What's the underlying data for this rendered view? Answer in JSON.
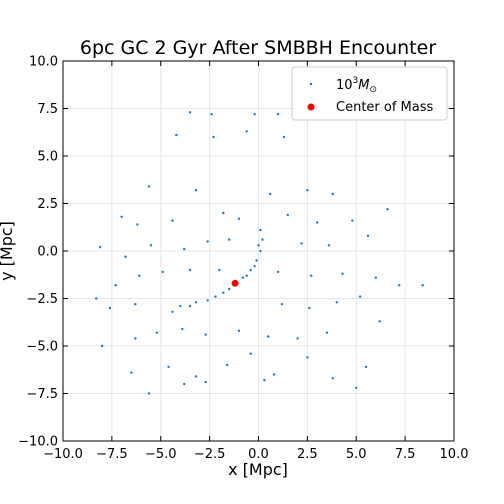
{
  "chart_data": {
    "type": "scatter",
    "title": "6pc GC 2 Gyr After SMBBH Encounter",
    "xlabel": "x [Mpc]",
    "ylabel": "y [Mpc]",
    "xlim": [
      -10,
      10
    ],
    "ylim": [
      -10,
      10
    ],
    "xticks": [
      -10,
      -7.5,
      -5,
      -2.5,
      0,
      2.5,
      5,
      7.5,
      10
    ],
    "yticks": [
      -10,
      -7.5,
      -5,
      -2.5,
      0,
      2.5,
      5,
      7.5,
      10
    ],
    "xtick_labels": [
      "−10.0",
      "−7.5",
      "−5.0",
      "−2.5",
      "0.0",
      "2.5",
      "5.0",
      "7.5",
      "10.0"
    ],
    "ytick_labels": [
      "−10.0",
      "−7.5",
      "−5.0",
      "−2.5",
      "0.0",
      "2.5",
      "5.0",
      "7.5",
      "10.0"
    ],
    "grid": true,
    "legend_position": "top-right",
    "series": [
      {
        "name": "10³M☉",
        "legend_base": "10",
        "legend_sup": "3",
        "legend_main": "M",
        "legend_sub": "⊙",
        "color": "#1f77b4",
        "marker": "dot",
        "points": [
          [
            -3.5,
            7.3
          ],
          [
            -2.4,
            7.2
          ],
          [
            -0.2,
            7.2
          ],
          [
            1.0,
            7.2
          ],
          [
            -4.2,
            6.1
          ],
          [
            -2.3,
            6.0
          ],
          [
            -0.6,
            6.3
          ],
          [
            1.3,
            6.0
          ],
          [
            -5.6,
            3.4
          ],
          [
            -3.2,
            3.2
          ],
          [
            0.6,
            3.0
          ],
          [
            2.5,
            3.2
          ],
          [
            3.8,
            3.0
          ],
          [
            -7.0,
            1.8
          ],
          [
            -6.2,
            1.4
          ],
          [
            -4.4,
            1.6
          ],
          [
            -1.8,
            2.0
          ],
          [
            -1.0,
            1.7
          ],
          [
            1.5,
            1.9
          ],
          [
            3.0,
            1.5
          ],
          [
            4.8,
            1.6
          ],
          [
            6.6,
            2.2
          ],
          [
            -8.1,
            0.2
          ],
          [
            -6.8,
            -0.3
          ],
          [
            -5.5,
            0.3
          ],
          [
            -3.8,
            0.1
          ],
          [
            -2.6,
            0.5
          ],
          [
            -1.5,
            0.6
          ],
          [
            2.2,
            0.4
          ],
          [
            3.6,
            0.3
          ],
          [
            5.6,
            0.8
          ],
          [
            -7.3,
            -1.8
          ],
          [
            -6.1,
            -1.3
          ],
          [
            -4.9,
            -1.1
          ],
          [
            -3.5,
            -1.0
          ],
          [
            -2.0,
            -1.0
          ],
          [
            1.0,
            -1.1
          ],
          [
            2.7,
            -1.3
          ],
          [
            4.3,
            -1.2
          ],
          [
            6.0,
            -1.4
          ],
          [
            -7.6,
            -3.0
          ],
          [
            -6.3,
            -2.8
          ],
          [
            -4.4,
            -3.2
          ],
          [
            -3.5,
            -2.9
          ],
          [
            -2.6,
            -2.6
          ],
          [
            -1.8,
            -2.2
          ],
          [
            -1.2,
            -1.8
          ],
          [
            -0.8,
            -1.4
          ],
          [
            -0.4,
            -1.0
          ],
          [
            -0.1,
            -0.5
          ],
          [
            0.1,
            0.0
          ],
          [
            0.2,
            0.6
          ],
          [
            0.1,
            1.1
          ],
          [
            -4.0,
            -2.9
          ],
          [
            -3.2,
            -2.7
          ],
          [
            -2.2,
            -2.4
          ],
          [
            -1.5,
            -2.0
          ],
          [
            -0.6,
            -1.3
          ],
          [
            -0.2,
            -0.8
          ],
          [
            0.0,
            0.3
          ],
          [
            1.2,
            -2.8
          ],
          [
            2.6,
            -3.0
          ],
          [
            4.0,
            -2.7
          ],
          [
            5.2,
            -2.4
          ],
          [
            6.2,
            -3.7
          ],
          [
            -8.0,
            -5.0
          ],
          [
            -6.3,
            -4.6
          ],
          [
            -5.2,
            -4.3
          ],
          [
            -3.9,
            -4.1
          ],
          [
            -2.7,
            -4.4
          ],
          [
            -1.0,
            -4.2
          ],
          [
            0.5,
            -4.5
          ],
          [
            2.0,
            -4.6
          ],
          [
            3.5,
            -4.3
          ],
          [
            -6.5,
            -6.4
          ],
          [
            -4.6,
            -6.1
          ],
          [
            -3.2,
            -6.6
          ],
          [
            -1.6,
            -6.0
          ],
          [
            0.8,
            -6.5
          ],
          [
            3.8,
            -6.7
          ],
          [
            5.5,
            -6.1
          ],
          [
            -5.6,
            -7.5
          ],
          [
            -3.8,
            -7.0
          ],
          [
            -2.7,
            -6.9
          ],
          [
            0.3,
            -6.8
          ],
          [
            5.0,
            -7.2
          ],
          [
            7.2,
            -1.8
          ],
          [
            8.4,
            -1.8
          ],
          [
            -8.3,
            -2.5
          ],
          [
            2.5,
            -5.6
          ],
          [
            -0.4,
            -5.4
          ]
        ]
      },
      {
        "name": "Center of Mass",
        "color": "#ff0000",
        "marker": "dot",
        "points": [
          [
            -1.2,
            -1.7
          ]
        ]
      }
    ]
  }
}
